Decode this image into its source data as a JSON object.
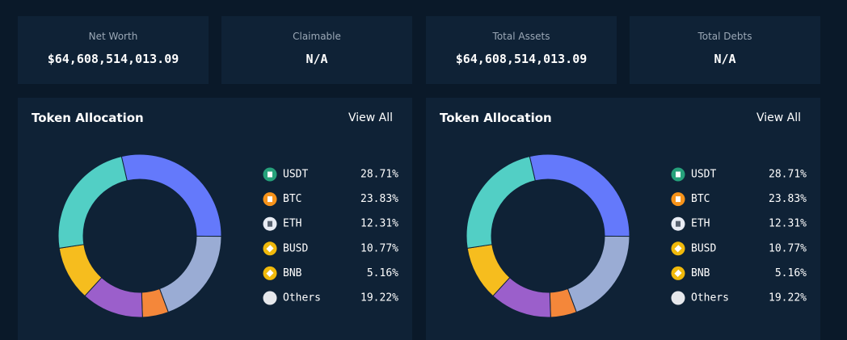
{
  "cards": [
    {
      "label": "Net Worth",
      "value": "$64,608,514,013.09"
    },
    {
      "label": "Claimable",
      "value": "N/A"
    },
    {
      "label": "Total Assets",
      "value": "$64,608,514,013.09"
    },
    {
      "label": "Total Debts",
      "value": "N/A"
    }
  ],
  "panels": [
    {
      "title": "Token Allocation",
      "link": "View All",
      "chart_data": {
        "type": "donut",
        "categories": [
          "USDT",
          "BTC",
          "ETH",
          "BUSD",
          "BNB",
          "Others"
        ],
        "values": [
          28.71,
          23.83,
          12.31,
          10.77,
          5.16,
          19.22
        ],
        "value_labels": [
          "28.71%",
          "23.83%",
          "12.31%",
          "10.77%",
          "5.16%",
          "19.22%"
        ],
        "colors": [
          "#6479fb",
          "#52cfc5",
          "#9b5fcb",
          "#f6bd1e",
          "#f4873a",
          "#9aacd4"
        ]
      }
    },
    {
      "title": "Token Allocation",
      "link": "View All",
      "chart_data": {
        "type": "donut",
        "categories": [
          "USDT",
          "BTC",
          "ETH",
          "BUSD",
          "BNB",
          "Others"
        ],
        "values": [
          28.71,
          23.83,
          12.31,
          10.77,
          5.16,
          19.22
        ],
        "value_labels": [
          "28.71%",
          "23.83%",
          "12.31%",
          "10.77%",
          "5.16%",
          "19.22%"
        ],
        "colors": [
          "#6479fb",
          "#52cfc5",
          "#9b5fcb",
          "#f6bd1e",
          "#f4873a",
          "#9aacd4"
        ]
      }
    }
  ]
}
